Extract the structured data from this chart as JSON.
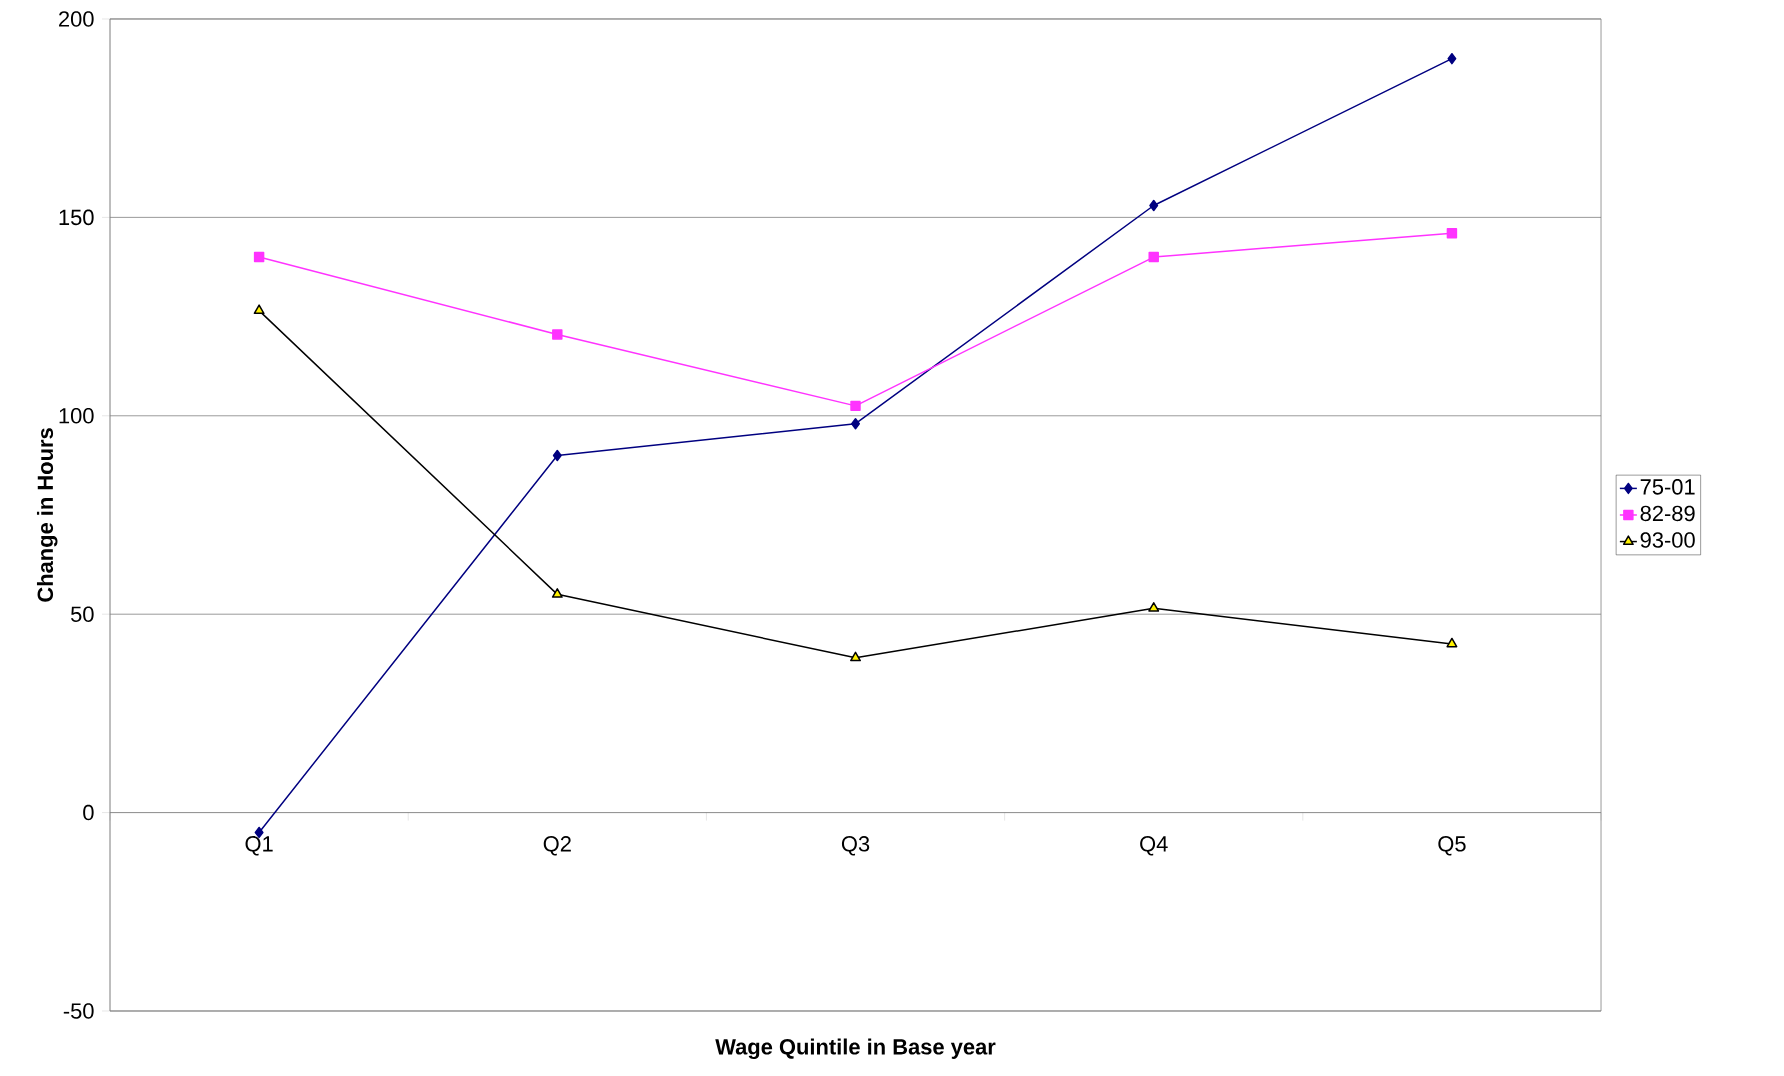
{
  "chart_data": {
    "type": "line",
    "xlabel": "Wage Quintile in Base year",
    "ylabel": "Change in Hours",
    "categories": [
      "Q1",
      "Q2",
      "Q3",
      "Q4",
      "Q5"
    ],
    "series": [
      {
        "name": "75-01",
        "color": "#000080",
        "marker": "diamond",
        "values": [
          -5,
          90,
          98,
          153,
          190
        ]
      },
      {
        "name": "82-89",
        "color": "#ff33ff",
        "marker": "square",
        "values": [
          140,
          120.5,
          102.5,
          140,
          146
        ]
      },
      {
        "name": "93-00",
        "color": "#000000",
        "marker": "triangle",
        "values": [
          126.5,
          55,
          39,
          51.5,
          42.5
        ]
      }
    ],
    "ylim": [
      -50,
      200
    ],
    "yticks": [
      -50,
      0,
      50,
      100,
      150,
      200
    ],
    "grid": "y",
    "legend": "right"
  }
}
